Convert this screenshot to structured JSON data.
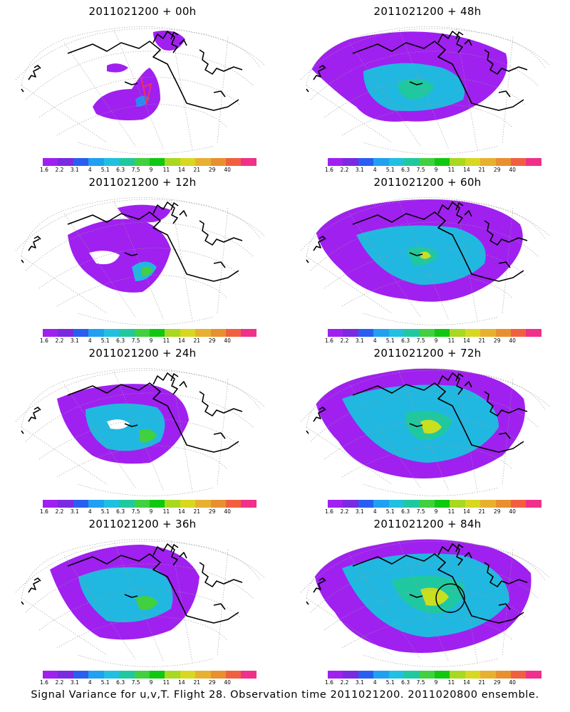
{
  "panels": [
    {
      "title": "2011021200 + 00h",
      "lead": "00h"
    },
    {
      "title": "2011021200 + 48h",
      "lead": "48h"
    },
    {
      "title": "2011021200 + 12h",
      "lead": "12h"
    },
    {
      "title": "2011021200 + 60h",
      "lead": "60h"
    },
    {
      "title": "2011021200 + 24h",
      "lead": "24h"
    },
    {
      "title": "2011021200 + 72h",
      "lead": "72h"
    },
    {
      "title": "2011021200 + 36h",
      "lead": "36h"
    },
    {
      "title": "2011021200 + 84h",
      "lead": "84h"
    }
  ],
  "colorbar": {
    "labels": [
      "1.6",
      "2.2",
      "3.1",
      "4",
      "5.1",
      "6.3",
      "7.5",
      "9",
      "11",
      "14",
      "21",
      "29",
      "40"
    ],
    "colors": [
      "#a020f0",
      "#7a2ae0",
      "#2a5ef0",
      "#20a0f0",
      "#20c0e0",
      "#20c8a0",
      "#40d040",
      "#10c810",
      "#a8d820",
      "#d8d820",
      "#e8b030",
      "#e89030",
      "#f06040",
      "#f0308a"
    ]
  },
  "caption": "Signal Variance for u,v,T. Flight 28. Observation time 2011021200. 2011020800 ensemble."
}
